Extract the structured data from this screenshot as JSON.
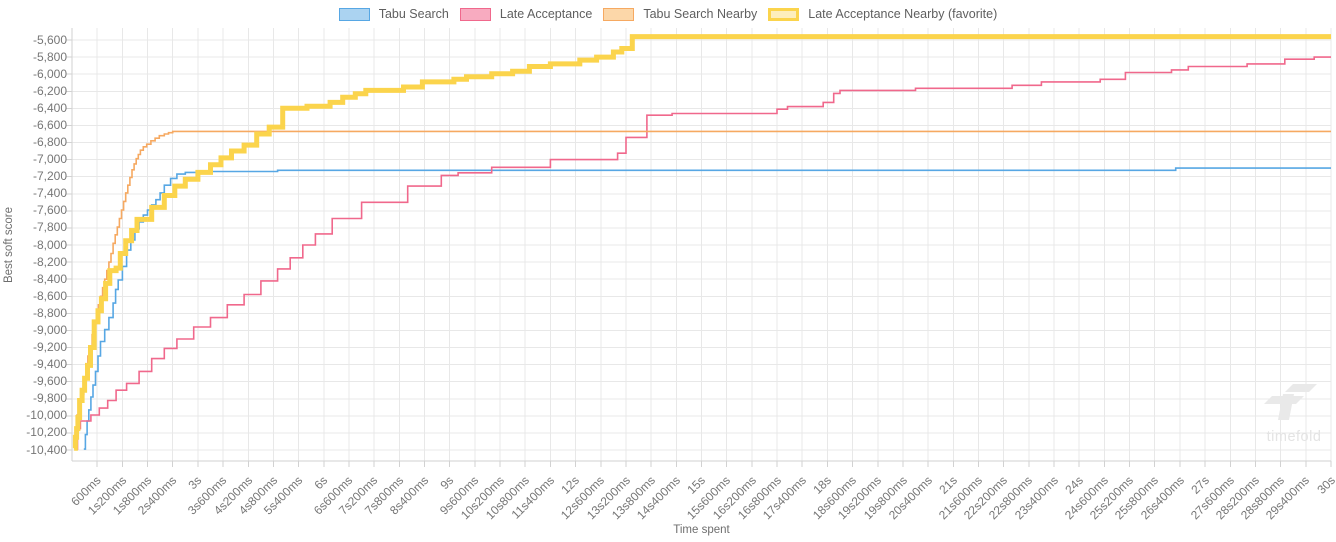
{
  "watermark": {
    "text": "timefold"
  },
  "y_axis": {
    "title": "Best soft score",
    "tick_labels": [
      "-5,600",
      "-5,800",
      "-6,000",
      "-6,200",
      "-6,400",
      "-6,600",
      "-6,800",
      "-7,000",
      "-7,200",
      "-7,400",
      "-7,600",
      "-7,800",
      "-8,000",
      "-8,200",
      "-8,400",
      "-8,600",
      "-8,800",
      "-9,000",
      "-9,200",
      "-9,400",
      "-9,600",
      "-9,800",
      "-10,000",
      "-10,200",
      "-10,400"
    ]
  },
  "x_axis": {
    "title": "Time spent",
    "tick_labels": [
      "600ms",
      "1s200ms",
      "1s800ms",
      "2s400ms",
      "3s",
      "3s600ms",
      "4s200ms",
      "4s800ms",
      "5s400ms",
      "6s",
      "6s600ms",
      "7s200ms",
      "7s800ms",
      "8s400ms",
      "9s",
      "9s600ms",
      "10s200ms",
      "10s800ms",
      "11s400ms",
      "12s",
      "12s600ms",
      "13s200ms",
      "13s800ms",
      "14s400ms",
      "15s",
      "15s600ms",
      "16s200ms",
      "16s800ms",
      "17s400ms",
      "18s",
      "18s600ms",
      "19s200ms",
      "19s800ms",
      "20s400ms",
      "21s",
      "21s600ms",
      "22s200ms",
      "22s800ms",
      "23s400ms",
      "24s",
      "24s600ms",
      "25s200ms",
      "25s800ms",
      "26s400ms",
      "27s",
      "27s600ms",
      "28s200ms",
      "28s800ms",
      "29s400ms",
      "30s"
    ],
    "tick_interval_ms": 600
  },
  "chart_data": {
    "type": "line",
    "step": "step-after",
    "title": "",
    "xlabel": "Time spent",
    "ylabel": "Best soft score",
    "x_unit": "seconds",
    "xlim": [
      0,
      30
    ],
    "ylim": [
      -10400,
      -5600
    ],
    "y_tick_step": 200,
    "grid": true,
    "legend_position": "top-center",
    "colors": {
      "grid": "#e8e8e8",
      "axis_border": "#d2d2d2",
      "tick_text": "#767676"
    },
    "series": [
      {
        "name": "Tabu Search",
        "color": "#57a7e4",
        "legend_fill": "#abd3f1",
        "width": 1.6,
        "final_value": -7100,
        "points": [
          [
            0.28,
            -10390
          ],
          [
            0.32,
            -10220
          ],
          [
            0.36,
            -10060
          ],
          [
            0.4,
            -9930
          ],
          [
            0.45,
            -9780
          ],
          [
            0.5,
            -9640
          ],
          [
            0.56,
            -9480
          ],
          [
            0.62,
            -9300
          ],
          [
            0.68,
            -9130
          ],
          [
            0.78,
            -8990
          ],
          [
            0.88,
            -8850
          ],
          [
            0.98,
            -8680
          ],
          [
            1.04,
            -8520
          ],
          [
            1.1,
            -8410
          ],
          [
            1.2,
            -8250
          ],
          [
            1.3,
            -8060
          ],
          [
            1.4,
            -7940
          ],
          [
            1.5,
            -7810
          ],
          [
            1.6,
            -7730
          ],
          [
            1.7,
            -7650
          ],
          [
            1.8,
            -7590
          ],
          [
            1.9,
            -7530
          ],
          [
            2.0,
            -7470
          ],
          [
            2.1,
            -7390
          ],
          [
            2.2,
            -7300
          ],
          [
            2.35,
            -7220
          ],
          [
            2.5,
            -7170
          ],
          [
            2.7,
            -7150
          ],
          [
            3.0,
            -7140
          ],
          [
            4.9,
            -7125
          ],
          [
            26.0,
            -7125
          ],
          [
            26.3,
            -7100
          ],
          [
            30,
            -7100
          ]
        ]
      },
      {
        "name": "Late Acceptance",
        "color": "#f0688c",
        "legend_fill": "#f8abc0",
        "width": 1.6,
        "final_value": -5800,
        "points": [
          [
            0.1,
            -10390
          ],
          [
            0.13,
            -10150
          ],
          [
            0.2,
            -10060
          ],
          [
            0.45,
            -9990
          ],
          [
            0.65,
            -9910
          ],
          [
            0.85,
            -9820
          ],
          [
            1.05,
            -9700
          ],
          [
            1.3,
            -9620
          ],
          [
            1.6,
            -9480
          ],
          [
            1.9,
            -9330
          ],
          [
            2.2,
            -9210
          ],
          [
            2.5,
            -9100
          ],
          [
            2.9,
            -8960
          ],
          [
            3.3,
            -8850
          ],
          [
            3.7,
            -8700
          ],
          [
            4.1,
            -8580
          ],
          [
            4.5,
            -8420
          ],
          [
            4.9,
            -8280
          ],
          [
            5.2,
            -8150
          ],
          [
            5.5,
            -8000
          ],
          [
            5.8,
            -7870
          ],
          [
            6.2,
            -7690
          ],
          [
            6.9,
            -7500
          ],
          [
            8.0,
            -7310
          ],
          [
            8.8,
            -7185
          ],
          [
            9.2,
            -7155
          ],
          [
            10.0,
            -7090
          ],
          [
            11.4,
            -7000
          ],
          [
            13.0,
            -6925
          ],
          [
            13.2,
            -6740
          ],
          [
            13.7,
            -6480
          ],
          [
            14.3,
            -6460
          ],
          [
            16.8,
            -6410
          ],
          [
            17.05,
            -6380
          ],
          [
            17.9,
            -6330
          ],
          [
            18.15,
            -6225
          ],
          [
            18.3,
            -6190
          ],
          [
            20.1,
            -6165
          ],
          [
            22.4,
            -6130
          ],
          [
            23.1,
            -6090
          ],
          [
            24.5,
            -6060
          ],
          [
            25.1,
            -5980
          ],
          [
            26.2,
            -5950
          ],
          [
            26.6,
            -5910
          ],
          [
            28.0,
            -5880
          ],
          [
            28.9,
            -5825
          ],
          [
            29.6,
            -5800
          ],
          [
            30,
            -5800
          ]
        ]
      },
      {
        "name": "Tabu Search Nearby",
        "color": "#f6a961",
        "legend_fill": "#fcd7a9",
        "width": 1.6,
        "final_value": -6670,
        "points": [
          [
            0.05,
            -10380
          ],
          [
            0.08,
            -10170
          ],
          [
            0.12,
            -9990
          ],
          [
            0.18,
            -9870
          ],
          [
            0.22,
            -9750
          ],
          [
            0.28,
            -9600
          ],
          [
            0.33,
            -9450
          ],
          [
            0.38,
            -9300
          ],
          [
            0.43,
            -9180
          ],
          [
            0.48,
            -9050
          ],
          [
            0.53,
            -8920
          ],
          [
            0.58,
            -8800
          ],
          [
            0.63,
            -8700
          ],
          [
            0.68,
            -8600
          ],
          [
            0.73,
            -8500
          ],
          [
            0.78,
            -8400
          ],
          [
            0.83,
            -8300
          ],
          [
            0.88,
            -8200
          ],
          [
            0.93,
            -8100
          ],
          [
            0.98,
            -7980
          ],
          [
            1.03,
            -7880
          ],
          [
            1.08,
            -7790
          ],
          [
            1.13,
            -7690
          ],
          [
            1.18,
            -7590
          ],
          [
            1.23,
            -7490
          ],
          [
            1.28,
            -7390
          ],
          [
            1.33,
            -7300
          ],
          [
            1.38,
            -7210
          ],
          [
            1.43,
            -7120
          ],
          [
            1.48,
            -7050
          ],
          [
            1.53,
            -6990
          ],
          [
            1.58,
            -6940
          ],
          [
            1.63,
            -6890
          ],
          [
            1.7,
            -6850
          ],
          [
            1.78,
            -6820
          ],
          [
            1.88,
            -6780
          ],
          [
            1.98,
            -6750
          ],
          [
            2.08,
            -6720
          ],
          [
            2.2,
            -6700
          ],
          [
            2.3,
            -6685
          ],
          [
            2.4,
            -6670
          ],
          [
            30,
            -6670
          ]
        ]
      },
      {
        "name": "Late Acceptance Nearby (favorite)",
        "color": "#fbd44c",
        "legend_fill": "#fdeebc",
        "width": 5,
        "favorite": true,
        "final_value": -5560,
        "points": [
          [
            0.05,
            -10380
          ],
          [
            0.08,
            -10250
          ],
          [
            0.11,
            -10150
          ],
          [
            0.14,
            -10020
          ],
          [
            0.18,
            -9820
          ],
          [
            0.24,
            -9700
          ],
          [
            0.3,
            -9560
          ],
          [
            0.37,
            -9410
          ],
          [
            0.44,
            -9200
          ],
          [
            0.53,
            -8900
          ],
          [
            0.62,
            -8770
          ],
          [
            0.7,
            -8630
          ],
          [
            0.8,
            -8450
          ],
          [
            0.9,
            -8300
          ],
          [
            1.05,
            -8270
          ],
          [
            1.15,
            -8100
          ],
          [
            1.28,
            -7950
          ],
          [
            1.42,
            -7830
          ],
          [
            1.55,
            -7700
          ],
          [
            1.9,
            -7560
          ],
          [
            2.2,
            -7420
          ],
          [
            2.45,
            -7310
          ],
          [
            2.7,
            -7230
          ],
          [
            3.0,
            -7150
          ],
          [
            3.3,
            -7060
          ],
          [
            3.55,
            -6980
          ],
          [
            3.8,
            -6900
          ],
          [
            4.1,
            -6830
          ],
          [
            4.4,
            -6700
          ],
          [
            4.7,
            -6620
          ],
          [
            5.02,
            -6400
          ],
          [
            5.6,
            -6375
          ],
          [
            6.15,
            -6330
          ],
          [
            6.45,
            -6270
          ],
          [
            6.75,
            -6230
          ],
          [
            7.0,
            -6190
          ],
          [
            7.9,
            -6150
          ],
          [
            8.35,
            -6090
          ],
          [
            9.1,
            -6060
          ],
          [
            9.4,
            -6030
          ],
          [
            10.0,
            -5995
          ],
          [
            10.5,
            -5965
          ],
          [
            10.9,
            -5910
          ],
          [
            11.4,
            -5880
          ],
          [
            12.1,
            -5835
          ],
          [
            12.5,
            -5800
          ],
          [
            12.9,
            -5740
          ],
          [
            13.1,
            -5700
          ],
          [
            13.35,
            -5560
          ],
          [
            30,
            -5560
          ]
        ]
      }
    ]
  }
}
